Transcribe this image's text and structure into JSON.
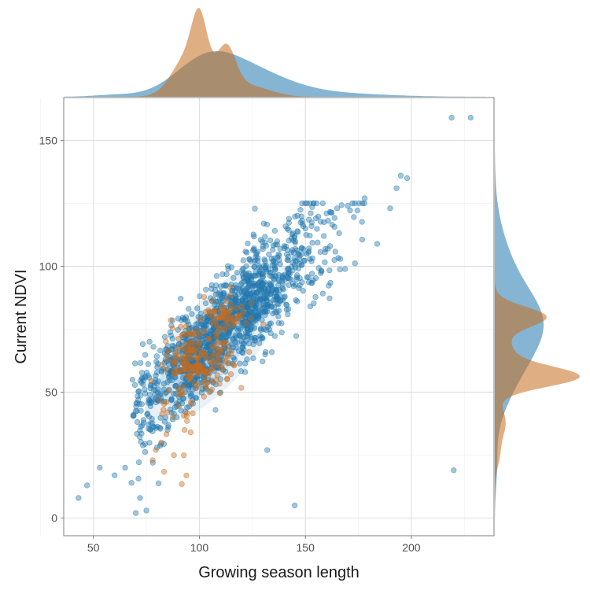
{
  "chart_data": {
    "type": "scatter",
    "title": "",
    "xlabel": "Growing season length",
    "ylabel": "Current NDVI",
    "xlim": [
      36,
      239
    ],
    "ylim": [
      -7,
      167
    ],
    "x_ticks": [
      50,
      100,
      150,
      200
    ],
    "y_ticks": [
      0,
      50,
      100,
      150
    ],
    "x_tick_labels": [
      "50",
      "100",
      "150",
      "200"
    ],
    "y_tick_labels": [
      "0",
      "50",
      "100",
      "150"
    ],
    "grid": true,
    "legend": "none",
    "marginal_densities": [
      "top",
      "right"
    ],
    "colors": {
      "blue": "#2178ae",
      "orange": "#c66c1e"
    },
    "series": [
      {
        "color": "#2178ae",
        "n_points_approx": 1400,
        "trend_slope": 0.75,
        "sample_points": [
          [
            43,
            8
          ],
          [
            47,
            13
          ],
          [
            53,
            20
          ],
          [
            60,
            17
          ],
          [
            65,
            20
          ],
          [
            68,
            14
          ],
          [
            70,
            2
          ],
          [
            72,
            8
          ],
          [
            75,
            3
          ],
          [
            78,
            22
          ],
          [
            80,
            28
          ],
          [
            85,
            35
          ],
          [
            90,
            45
          ],
          [
            95,
            52
          ],
          [
            100,
            58
          ],
          [
            105,
            65
          ],
          [
            110,
            72
          ],
          [
            115,
            80
          ],
          [
            120,
            85
          ],
          [
            125,
            92
          ],
          [
            130,
            97
          ],
          [
            135,
            102
          ],
          [
            140,
            108
          ],
          [
            145,
            112
          ],
          [
            150,
            115
          ],
          [
            155,
            119
          ],
          [
            160,
            121
          ],
          [
            165,
            123
          ],
          [
            170,
            124
          ],
          [
            178,
            127
          ],
          [
            190,
            123
          ],
          [
            195,
            136
          ],
          [
            198,
            135
          ],
          [
            193,
            131
          ],
          [
            219,
            159
          ],
          [
            228,
            159
          ],
          [
            220,
            19
          ],
          [
            145,
            5
          ],
          [
            132,
            27
          ]
        ]
      },
      {
        "color": "#c66c1e",
        "n_points_approx": 250,
        "sample_points": [
          [
            82,
            30
          ],
          [
            85,
            42
          ],
          [
            90,
            58
          ],
          [
            92,
            50
          ],
          [
            95,
            65
          ],
          [
            100,
            60
          ],
          [
            102,
            58
          ],
          [
            105,
            62
          ],
          [
            108,
            72
          ],
          [
            110,
            80
          ],
          [
            112,
            82
          ],
          [
            115,
            83
          ],
          [
            118,
            80
          ],
          [
            120,
            84
          ],
          [
            108,
            55
          ],
          [
            100,
            53
          ],
          [
            96,
            46
          ],
          [
            93,
            35
          ],
          [
            88,
            25
          ],
          [
            78,
            23
          ]
        ]
      }
    ]
  }
}
